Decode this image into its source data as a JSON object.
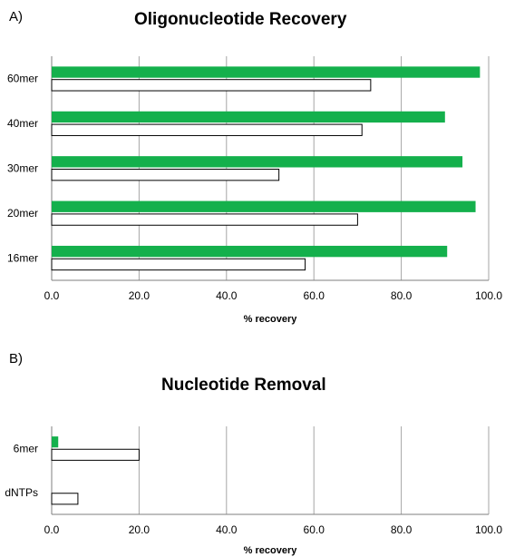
{
  "panels": [
    {
      "letter": "A)"
    },
    {
      "letter": "B)"
    }
  ],
  "colors": {
    "series_filled": "#14b04c",
    "series_outline": "#ffffff",
    "outline": "#000000",
    "grid": "#a6a6a6"
  },
  "chart_data": [
    {
      "type": "bar",
      "orientation": "horizontal",
      "title": "Oligonucleotide Recovery",
      "xlabel": "% recovery",
      "ylabel": "",
      "xlim": [
        0,
        100
      ],
      "x_ticks": [
        "0.0",
        "20.0",
        "40.0",
        "60.0",
        "80.0",
        "100.0"
      ],
      "categories": [
        "60mer",
        "40mer",
        "30mer",
        "20mer",
        "16mer"
      ],
      "series": [
        {
          "values": [
            98,
            90,
            94,
            97,
            90.5
          ]
        },
        {
          "values": [
            73,
            71,
            52,
            70,
            58
          ]
        }
      ],
      "grid": "vertical",
      "legend": "none"
    },
    {
      "type": "bar",
      "orientation": "horizontal",
      "title": "Nucleotide Removal",
      "xlabel": "% recovery",
      "ylabel": "",
      "xlim": [
        0,
        100
      ],
      "x_ticks": [
        "0.0",
        "20.0",
        "40.0",
        "60.0",
        "80.0",
        "100.0"
      ],
      "categories": [
        "6mer",
        "dNTPs"
      ],
      "series": [
        {
          "values": [
            1.5,
            0
          ]
        },
        {
          "values": [
            20,
            6
          ]
        }
      ],
      "grid": "vertical",
      "legend": "none"
    }
  ]
}
